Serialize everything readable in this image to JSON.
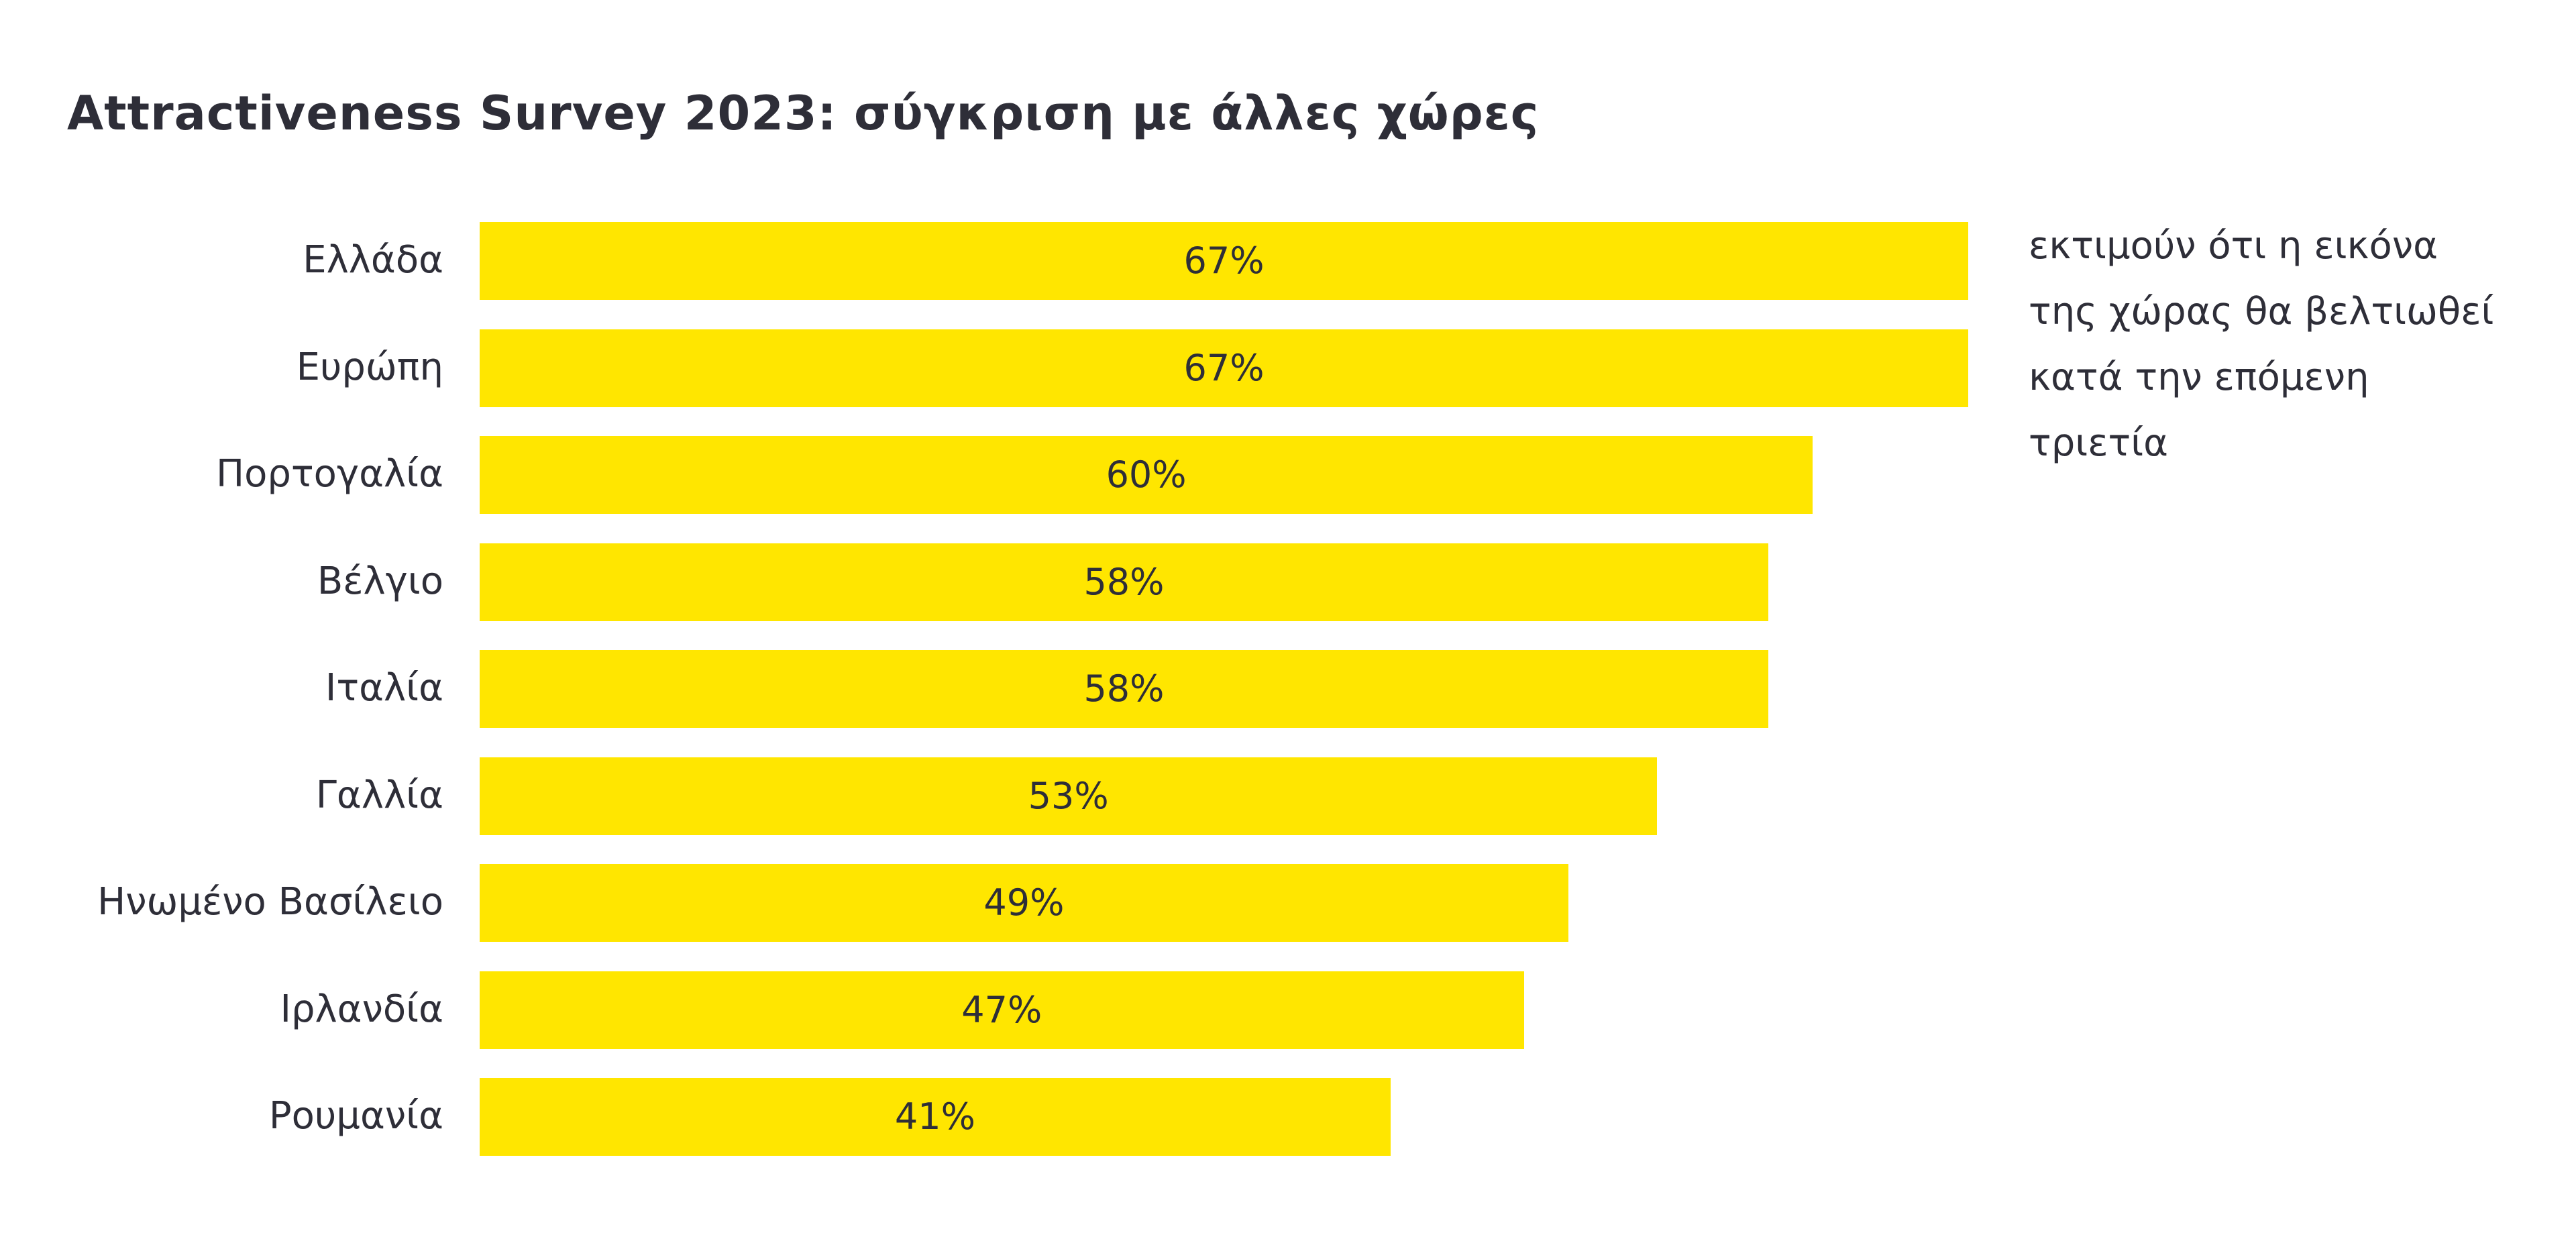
{
  "chart_data": {
    "type": "bar",
    "orientation": "horizontal",
    "title": "Attractiveness Survey 2023: σύγκριση με άλλες χώρες",
    "categories": [
      "Ελλάδα",
      "Ευρώπη",
      "Πορτογαλία",
      "Βέλγιο",
      "Ιταλία",
      "Γαλλία",
      "Ηνωμένο Βασίλειο",
      "Ιρλανδία",
      "Ρουμανία"
    ],
    "values": [
      67,
      67,
      60,
      58,
      58,
      53,
      49,
      47,
      41
    ],
    "value_labels": [
      "67%",
      "67%",
      "60%",
      "58%",
      "58%",
      "53%",
      "49%",
      "47%",
      "41%"
    ],
    "unit": "%",
    "xlabel": "",
    "ylabel": "",
    "xlim": [
      0,
      67
    ],
    "grid": false,
    "bar_color": "#FFE600",
    "text_color": "#2e2e38",
    "annotation_lines": [
      "εκτιμούν ότι η εικόνα",
      "της χώρας θα βελτιωθεί",
      "κατά την επόμενη",
      "τριετία"
    ]
  }
}
